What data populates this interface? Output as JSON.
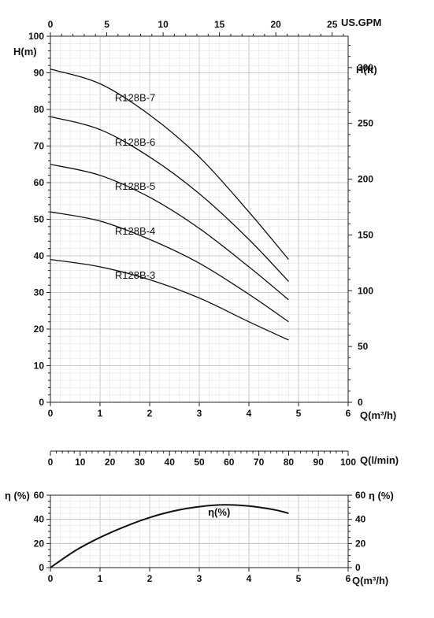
{
  "chart_data": [
    {
      "type": "line",
      "xlabel": "Q(m³/h)",
      "ylabel": "H(m)",
      "ylabel_right": "H(ft)",
      "xlabel_top": "US.GPM",
      "xlim": [
        0,
        6
      ],
      "ylim": [
        0,
        100
      ],
      "x_ticks": [
        "0",
        "1",
        "2",
        "3",
        "4",
        "5",
        "6"
      ],
      "y_ticks": [
        "0",
        "10",
        "20",
        "30",
        "40",
        "50",
        "60",
        "70",
        "80",
        "90",
        "100"
      ],
      "right_ticks": [
        "0",
        "50",
        "100",
        "150",
        "200",
        "250",
        "300"
      ],
      "top_ticks": [
        "0",
        "5",
        "10",
        "15",
        "20",
        "25"
      ],
      "grid": true,
      "series": [
        {
          "name": "R128B-7",
          "x": [
            0,
            1,
            2,
            3,
            4,
            4.8
          ],
          "y": [
            91,
            87,
            78.5,
            67,
            52,
            39
          ]
        },
        {
          "name": "R128B-6",
          "x": [
            0,
            1,
            2,
            3,
            4,
            4.8
          ],
          "y": [
            78,
            74.5,
            67,
            57,
            44.5,
            33
          ]
        },
        {
          "name": "R128B-5",
          "x": [
            0,
            1,
            2,
            3,
            4,
            4.8
          ],
          "y": [
            65,
            62,
            56,
            47.5,
            37,
            28
          ]
        },
        {
          "name": "R128B-4",
          "x": [
            0,
            1,
            2,
            3,
            4,
            4.8
          ],
          "y": [
            52,
            49.5,
            44.5,
            38,
            29.5,
            22
          ]
        },
        {
          "name": "R128B-3",
          "x": [
            0,
            1,
            2,
            3,
            4,
            4.8
          ],
          "y": [
            39,
            37,
            33.5,
            28.5,
            22,
            17
          ]
        }
      ]
    },
    {
      "type": "axis",
      "xlabel": "Q(l/min)",
      "xlim": [
        0,
        100
      ],
      "x_ticks": [
        "0",
        "10",
        "20",
        "30",
        "40",
        "50",
        "60",
        "70",
        "80",
        "90",
        "100"
      ]
    },
    {
      "type": "line",
      "xlabel": "Q(m³/h)",
      "ylabel": "η (%)",
      "ylabel_right": "η (%)",
      "xlim": [
        0,
        6
      ],
      "ylim": [
        0,
        60
      ],
      "x_ticks": [
        "0",
        "1",
        "2",
        "3",
        "4",
        "5",
        "6"
      ],
      "y_ticks": [
        "0",
        "20",
        "40",
        "60"
      ],
      "grid": true,
      "series": [
        {
          "name": "η(%)",
          "x": [
            0,
            0.5,
            1,
            1.5,
            2,
            2.5,
            3,
            3.5,
            4,
            4.5,
            4.8
          ],
          "y": [
            0,
            14,
            25,
            34,
            41.5,
            47,
            50.5,
            52,
            51,
            48,
            45
          ]
        }
      ]
    }
  ]
}
